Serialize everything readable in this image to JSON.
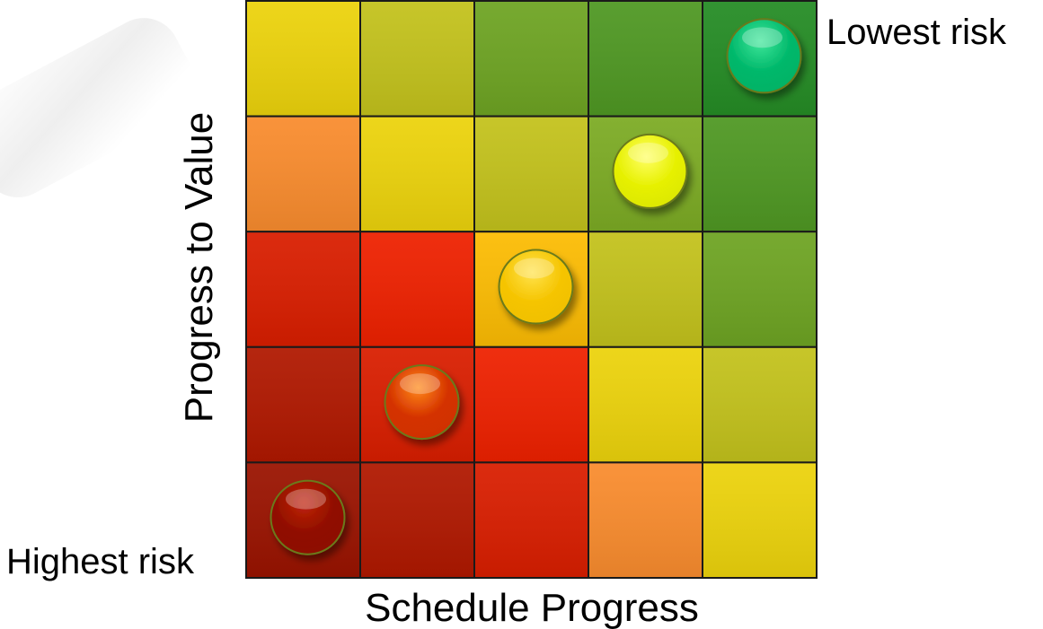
{
  "chart_data": {
    "type": "heatmap",
    "title": "",
    "xlabel": "Schedule Progress",
    "ylabel": "Progress to Value",
    "corner_labels": {
      "top_right": "Lowest risk",
      "bottom_left": "Highest risk"
    },
    "grid_rows": 5,
    "grid_cols": 5,
    "cell_colors_top_to_bottom": [
      [
        "#ecd30c",
        "#c3c21c",
        "#6ea423",
        "#4f9823",
        "#258c25"
      ],
      [
        "#f98c2e",
        "#ecd30c",
        "#c3c21c",
        "#7cab24",
        "#4f9823"
      ],
      [
        "#d91e00",
        "#ee2100",
        "#fcbc03",
        "#c3c21c",
        "#6ea423"
      ],
      [
        "#b01800",
        "#d91e00",
        "#ee2100",
        "#ecd30c",
        "#c3c21c"
      ],
      [
        "#9a1300",
        "#b01800",
        "#d91e00",
        "#f98c2e",
        "#ecd30c"
      ]
    ],
    "markers": [
      {
        "col": 5,
        "row": 5,
        "color": "#00b86b",
        "highlight": "#3fe69a"
      },
      {
        "col": 4,
        "row": 4,
        "color": "#e6f000",
        "highlight": "#ffff66"
      },
      {
        "col": 3,
        "row": 3,
        "color": "#f5c400",
        "highlight": "#ffe34d"
      },
      {
        "col": 2,
        "row": 2,
        "color": "#d43200",
        "highlight": "#ff8a1a"
      },
      {
        "col": 1,
        "row": 1,
        "color": "#900e00",
        "highlight": "#c0240a"
      }
    ]
  }
}
